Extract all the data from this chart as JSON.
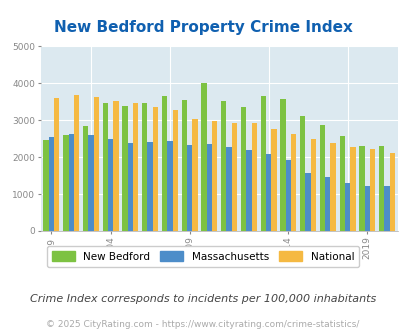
{
  "title": "New Bedford Property Crime Index",
  "subtitle": "Crime Index corresponds to incidents per 100,000 inhabitants",
  "footer": "© 2025 CityRating.com - https://www.cityrating.com/crime-statistics/",
  "years": [
    1999,
    2000,
    2003,
    2004,
    2005,
    2007,
    2008,
    2009,
    2010,
    2011,
    2012,
    2013,
    2014,
    2016,
    2017,
    2018,
    2019,
    2020
  ],
  "new_bedford": [
    2470,
    2610,
    2830,
    3460,
    3390,
    3470,
    3650,
    3550,
    4010,
    3510,
    3350,
    3640,
    3560,
    3100,
    2880,
    2560,
    2290,
    2290
  ],
  "massachusetts": [
    2530,
    2620,
    2590,
    2500,
    2370,
    2420,
    2440,
    2340,
    2360,
    2280,
    2190,
    2090,
    1910,
    1580,
    1470,
    1310,
    1230,
    1220
  ],
  "national": [
    3600,
    3690,
    3630,
    3520,
    3450,
    3360,
    3280,
    3040,
    2980,
    2930,
    2920,
    2760,
    2630,
    2480,
    2370,
    2260,
    2230,
    2110
  ],
  "xlim_ticks": [
    1999,
    2004,
    2009,
    2014,
    2019
  ],
  "ylim": [
    0,
    5000
  ],
  "yticks": [
    0,
    1000,
    2000,
    3000,
    4000,
    5000
  ],
  "bar_colors": {
    "new_bedford": "#7dc242",
    "massachusetts": "#4d8dc9",
    "national": "#f5b942"
  },
  "background_color": "#dce9f0",
  "title_color": "#1060b0",
  "title_fontsize": 11,
  "axis_color": "#888888",
  "legend_labels": [
    "New Bedford",
    "Massachusetts",
    "National"
  ],
  "subtitle_fontsize": 8,
  "footer_fontsize": 6.5
}
